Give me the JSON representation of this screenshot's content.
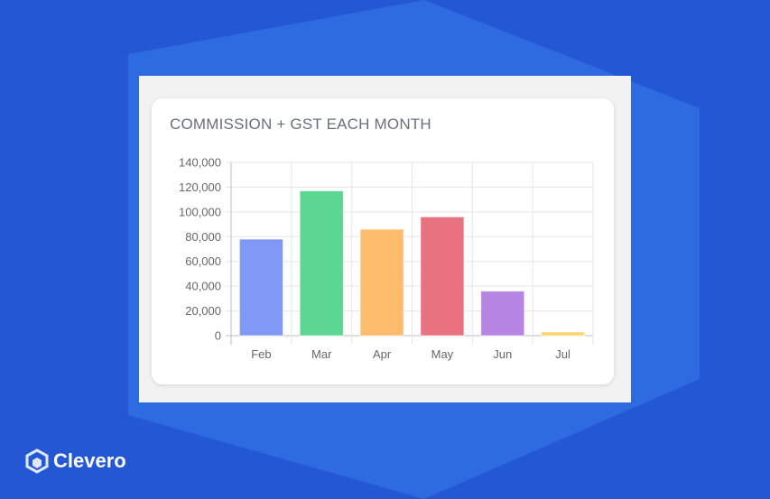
{
  "brand": {
    "name": "Clevero"
  },
  "colors": {
    "background": "#2457d4",
    "hexagon": "#2e6ae0"
  },
  "chart_data": {
    "type": "bar",
    "title": "COMMISSION + GST EACH MONTH",
    "categories": [
      "Feb",
      "Mar",
      "Apr",
      "May",
      "Jun",
      "Jul"
    ],
    "values": [
      78000,
      117000,
      86000,
      96000,
      36000,
      3000
    ],
    "colors": [
      "#8199f6",
      "#5bd693",
      "#fdbc6c",
      "#e8727f",
      "#b684e3",
      "#fbd56b"
    ],
    "ylim": [
      0,
      140000
    ],
    "yticks": [
      "0",
      "20,000",
      "40,000",
      "60,000",
      "80,000",
      "100,000",
      "120,000",
      "140,000"
    ],
    "ytick_values": [
      0,
      20000,
      40000,
      60000,
      80000,
      100000,
      120000,
      140000
    ],
    "grid": true,
    "legend": "none"
  }
}
